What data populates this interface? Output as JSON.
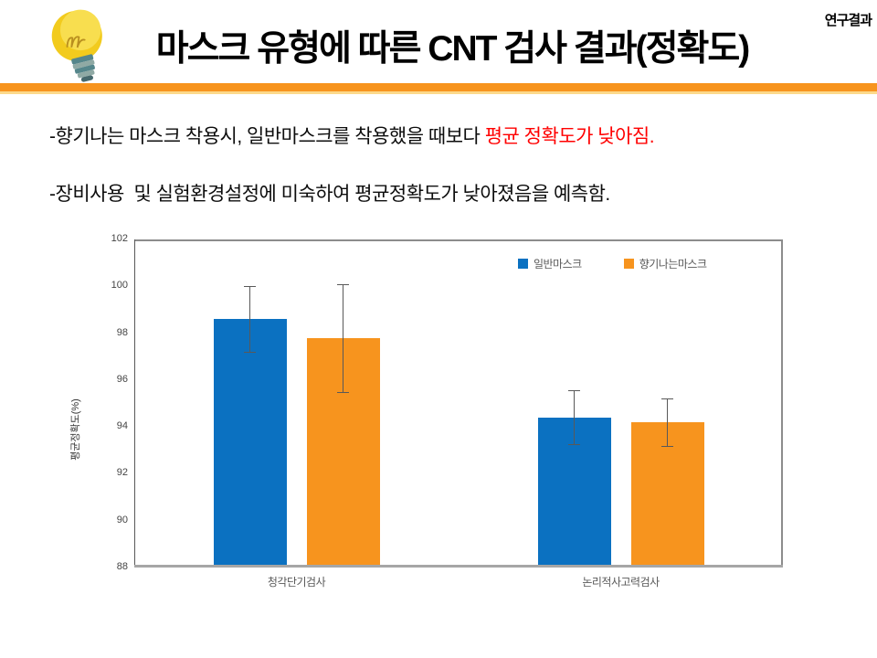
{
  "slide": {
    "badge": "연구결과",
    "title": "마스크 유형에 따른 CNT 검사 결과(정확도)",
    "bullet1_prefix": "-향기나는 마스크 착용시, 일반마스크를 착용했을 때보다 ",
    "bullet1_highlight": "평균 정확도가 낮아짐.",
    "bullet2": "-장비사용  및 실험환경설정에 미숙하여 평균정확도가 낮아졌음을 예측함.",
    "accent_color": "#F7941E",
    "highlight_color": "#FF0000",
    "icon": "lightbulb-icon"
  },
  "chart_data": {
    "type": "bar",
    "title": "",
    "categories": [
      "청각단기검사",
      "논리적사고력검사"
    ],
    "series": [
      {
        "name": "일반마스크",
        "color": "#0B71C1",
        "values": [
          98.6,
          94.4
        ],
        "errors": [
          1.4,
          1.15
        ]
      },
      {
        "name": "향기나는마스크",
        "color": "#F7941E",
        "values": [
          97.8,
          94.2
        ],
        "errors": [
          2.3,
          1.0
        ]
      }
    ],
    "xlabel": "",
    "ylabel": "평균정확도(%)",
    "ylim": [
      88,
      102
    ],
    "ytick_step": 2,
    "yticks": [
      88,
      90,
      92,
      94,
      96,
      98,
      100,
      102
    ],
    "grid": false,
    "error_bars": true,
    "legend_position": "top-inside",
    "error_bar_color": "#595959"
  }
}
